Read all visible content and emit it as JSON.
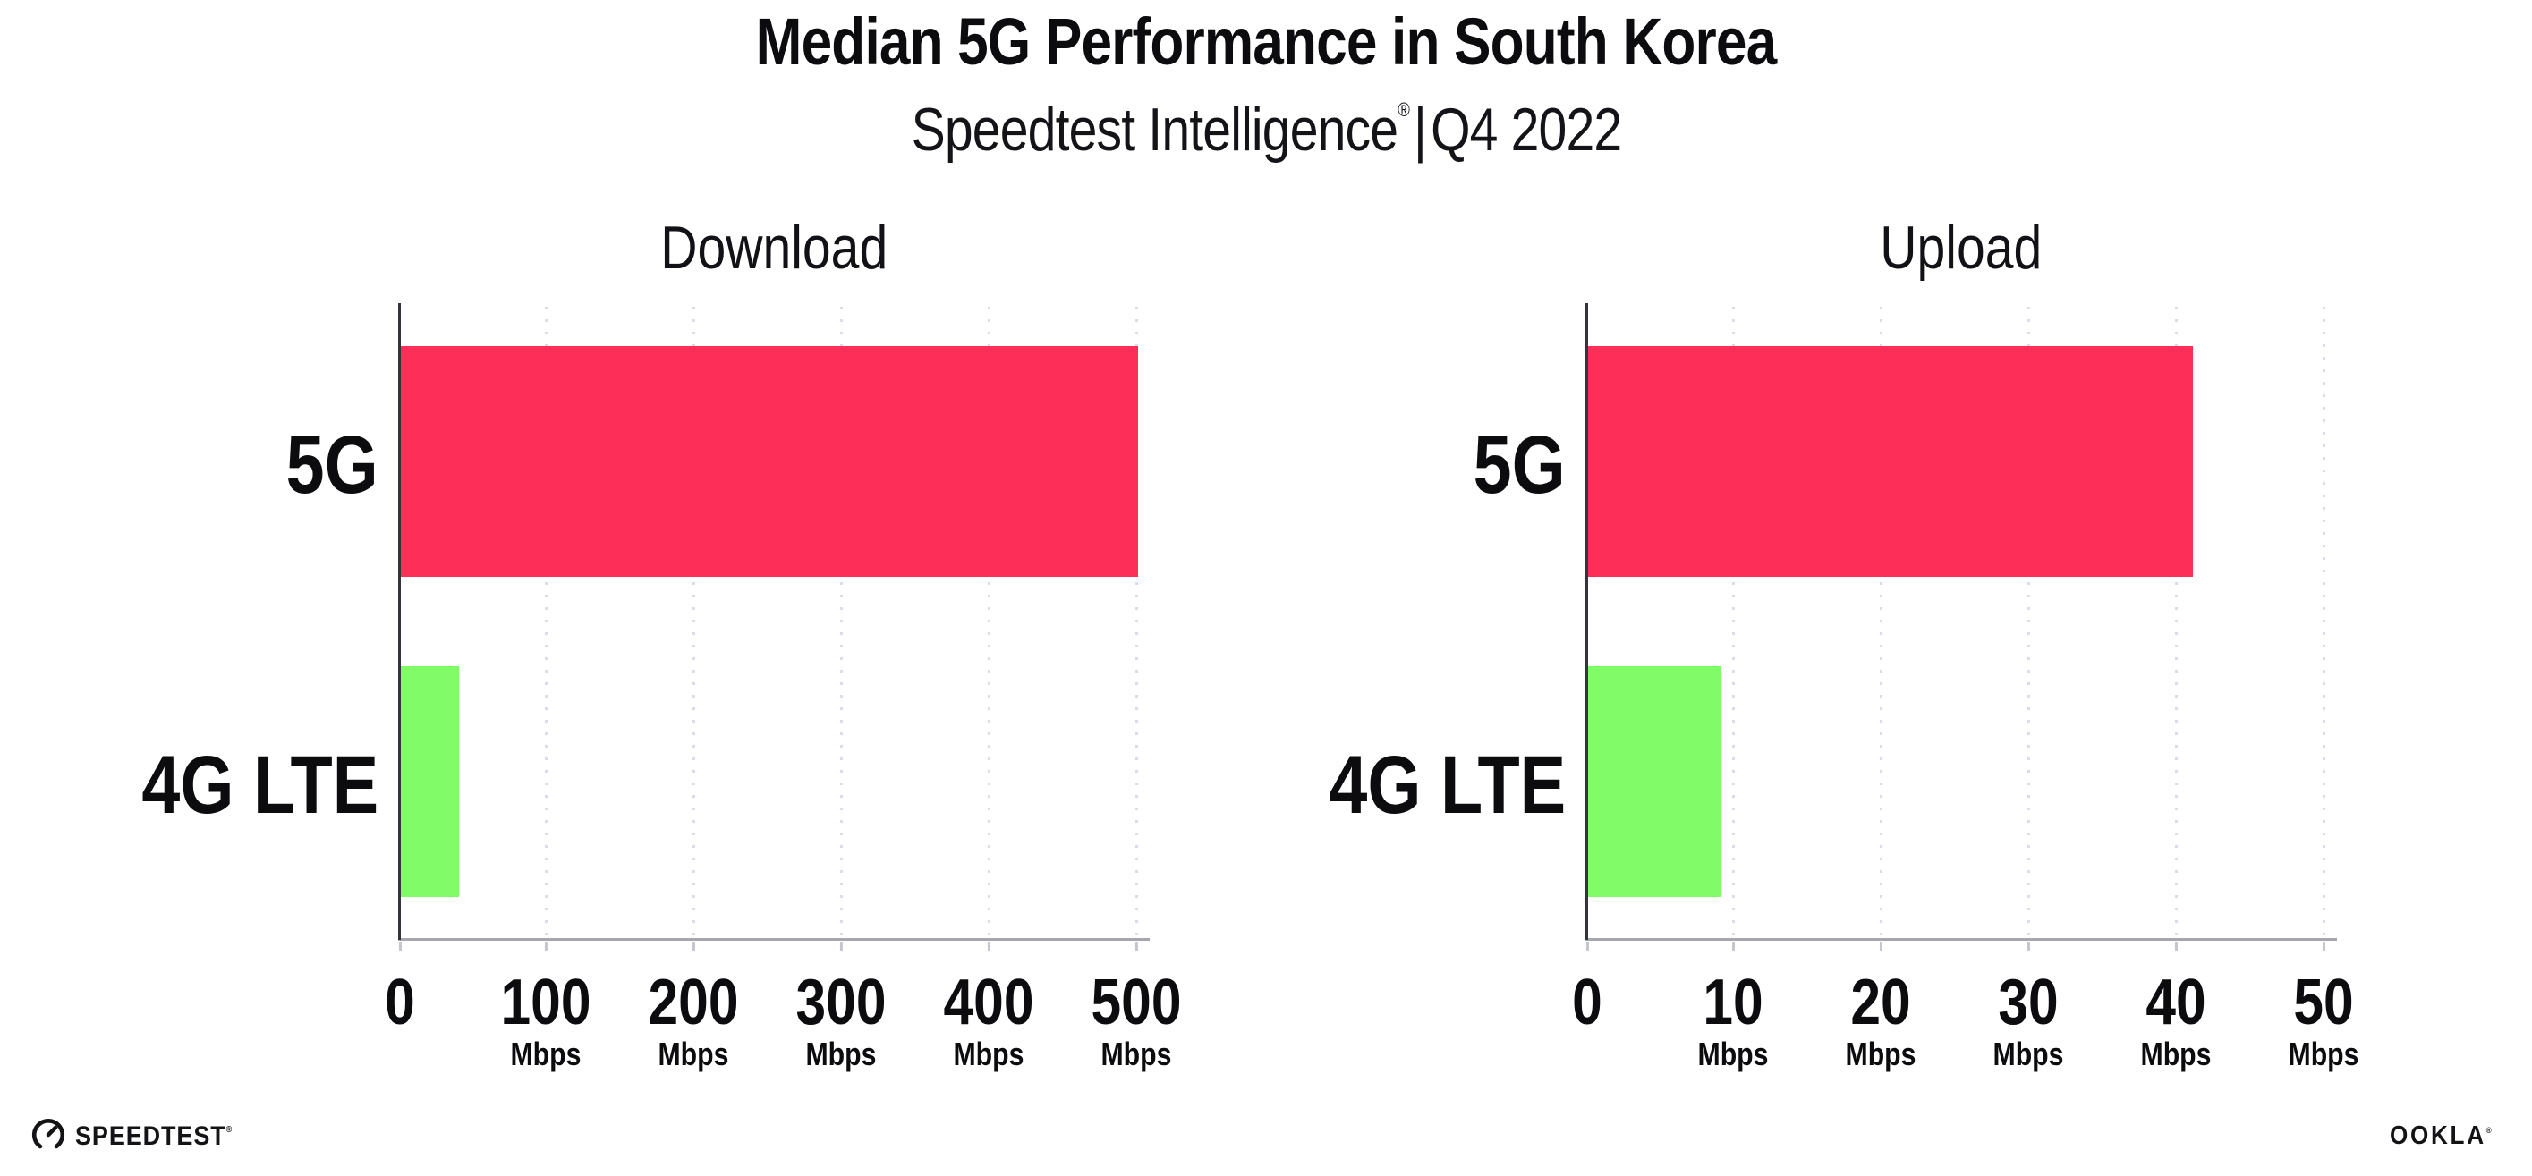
{
  "header": {
    "title": "Median 5G Performance in South Korea",
    "subtitle_brand": "Speedtest Intelligence",
    "subtitle_reg": "®",
    "subtitle_sep": "|",
    "subtitle_period": "Q4 2022"
  },
  "charts": [
    {
      "title": "Download",
      "xmax": 500,
      "ticks": [
        {
          "label": "0",
          "unit": ""
        },
        {
          "label": "100",
          "unit": "Mbps"
        },
        {
          "label": "200",
          "unit": "Mbps"
        },
        {
          "label": "300",
          "unit": "Mbps"
        },
        {
          "label": "400",
          "unit": "Mbps"
        },
        {
          "label": "500",
          "unit": "Mbps"
        }
      ],
      "bars": [
        {
          "label": "5G",
          "value": 500,
          "color": "#fd2e57"
        },
        {
          "label": "4G LTE",
          "value": 40,
          "color": "#81fb68"
        }
      ]
    },
    {
      "title": "Upload",
      "xmax": 50,
      "ticks": [
        {
          "label": "0",
          "unit": ""
        },
        {
          "label": "10",
          "unit": "Mbps"
        },
        {
          "label": "20",
          "unit": "Mbps"
        },
        {
          "label": "30",
          "unit": "Mbps"
        },
        {
          "label": "40",
          "unit": "Mbps"
        },
        {
          "label": "50",
          "unit": "Mbps"
        }
      ],
      "bars": [
        {
          "label": "5G",
          "value": 41,
          "color": "#fd2e57"
        },
        {
          "label": "4G LTE",
          "value": 9,
          "color": "#81fb68"
        }
      ]
    }
  ],
  "footer": {
    "speedtest": "SPEEDTEST",
    "speedtest_mark": "®",
    "ookla": "OOKLA",
    "ookla_mark": "®"
  },
  "colors": {
    "bar_5g": "#fd2e57",
    "bar_4g_lte": "#81fb68",
    "x_axis_line": "#a6a6ae",
    "y_axis_line": "#34343e",
    "gridline_dots": "#dcdce8",
    "text": "#0c0c0e"
  },
  "chart_data": [
    {
      "type": "bar",
      "orientation": "horizontal",
      "title": "Download",
      "categories": [
        "5G",
        "4G LTE"
      ],
      "values": [
        500,
        40
      ],
      "unit": "Mbps",
      "xlim": [
        0,
        500
      ],
      "xticks": [
        0,
        100,
        200,
        300,
        400,
        500
      ],
      "colors": [
        "#fd2e57",
        "#81fb68"
      ],
      "legend": "none",
      "grid": "vertical-dotted"
    },
    {
      "type": "bar",
      "orientation": "horizontal",
      "title": "Upload",
      "categories": [
        "5G",
        "4G LTE"
      ],
      "values": [
        41,
        9
      ],
      "unit": "Mbps",
      "xlim": [
        0,
        50
      ],
      "xticks": [
        0,
        10,
        20,
        30,
        40,
        50
      ],
      "colors": [
        "#fd2e57",
        "#81fb68"
      ],
      "legend": "none",
      "grid": "vertical-dotted"
    }
  ]
}
